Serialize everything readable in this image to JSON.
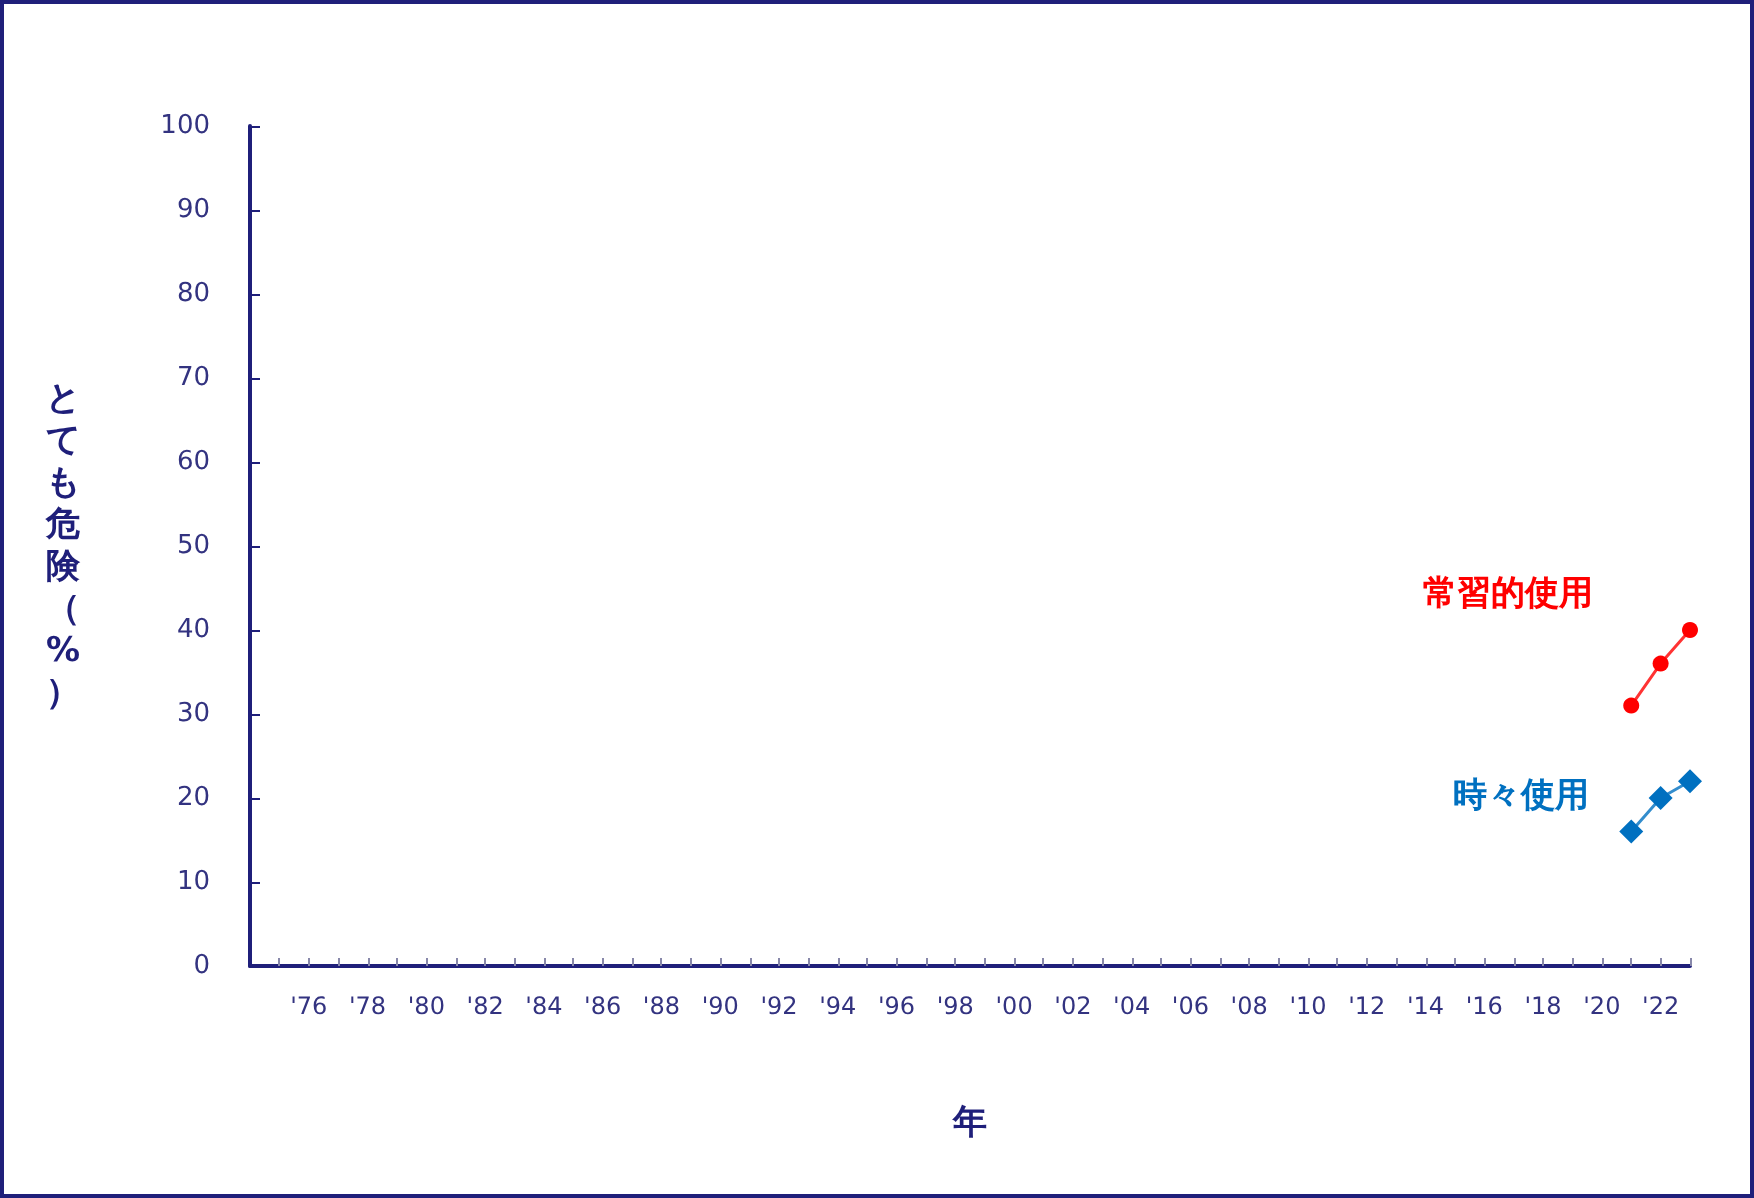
{
  "chart_data": {
    "type": "line",
    "xlabel": "年",
    "ylabel": "とても危険（%）",
    "xlim": [
      1974,
      2023
    ],
    "xticks": [
      {
        "value": 1975,
        "label": null
      },
      {
        "value": 1976,
        "label": "'76"
      },
      {
        "value": 1977,
        "label": null
      },
      {
        "value": 1978,
        "label": "'78"
      },
      {
        "value": 1979,
        "label": null
      },
      {
        "value": 1980,
        "label": "'80"
      },
      {
        "value": 1981,
        "label": null
      },
      {
        "value": 1982,
        "label": "'82"
      },
      {
        "value": 1983,
        "label": null
      },
      {
        "value": 1984,
        "label": "'84"
      },
      {
        "value": 1985,
        "label": null
      },
      {
        "value": 1986,
        "label": "'86"
      },
      {
        "value": 1987,
        "label": null
      },
      {
        "value": 1988,
        "label": "'88"
      },
      {
        "value": 1989,
        "label": null
      },
      {
        "value": 1990,
        "label": "'90"
      },
      {
        "value": 1991,
        "label": null
      },
      {
        "value": 1992,
        "label": "'92"
      },
      {
        "value": 1993,
        "label": null
      },
      {
        "value": 1994,
        "label": "'94"
      },
      {
        "value": 1995,
        "label": null
      },
      {
        "value": 1996,
        "label": "'96"
      },
      {
        "value": 1997,
        "label": null
      },
      {
        "value": 1998,
        "label": "'98"
      },
      {
        "value": 1999,
        "label": null
      },
      {
        "value": 2000,
        "label": "'00"
      },
      {
        "value": 2001,
        "label": null
      },
      {
        "value": 2002,
        "label": "'02"
      },
      {
        "value": 2003,
        "label": null
      },
      {
        "value": 2004,
        "label": "'04"
      },
      {
        "value": 2005,
        "label": null
      },
      {
        "value": 2006,
        "label": "'06"
      },
      {
        "value": 2007,
        "label": null
      },
      {
        "value": 2008,
        "label": "'08"
      },
      {
        "value": 2009,
        "label": null
      },
      {
        "value": 2010,
        "label": "'10"
      },
      {
        "value": 2011,
        "label": null
      },
      {
        "value": 2012,
        "label": "'12"
      },
      {
        "value": 2013,
        "label": null
      },
      {
        "value": 2014,
        "label": "'14"
      },
      {
        "value": 2015,
        "label": null
      },
      {
        "value": 2016,
        "label": "'16"
      },
      {
        "value": 2017,
        "label": null
      },
      {
        "value": 2018,
        "label": "'18"
      },
      {
        "value": 2019,
        "label": null
      },
      {
        "value": 2020,
        "label": "'20"
      },
      {
        "value": 2021,
        "label": null
      },
      {
        "value": 2022,
        "label": "'22"
      },
      {
        "value": 2023,
        "label": null
      }
    ],
    "ylim": [
      0,
      100
    ],
    "yticks": [
      0,
      10,
      20,
      30,
      40,
      50,
      60,
      70,
      80,
      90,
      100
    ],
    "grid": false,
    "legend": false,
    "line_style": "solid",
    "series": [
      {
        "name": "常習的使用",
        "color": "#ff0000",
        "marker": "circle",
        "x": [
          2021,
          2022,
          2023
        ],
        "values": [
          31,
          36,
          40
        ]
      },
      {
        "name": "時々使用",
        "color": "#0070c0",
        "marker": "diamond",
        "x": [
          2021,
          2022,
          2023
        ],
        "values": [
          16,
          20,
          22
        ]
      }
    ]
  }
}
